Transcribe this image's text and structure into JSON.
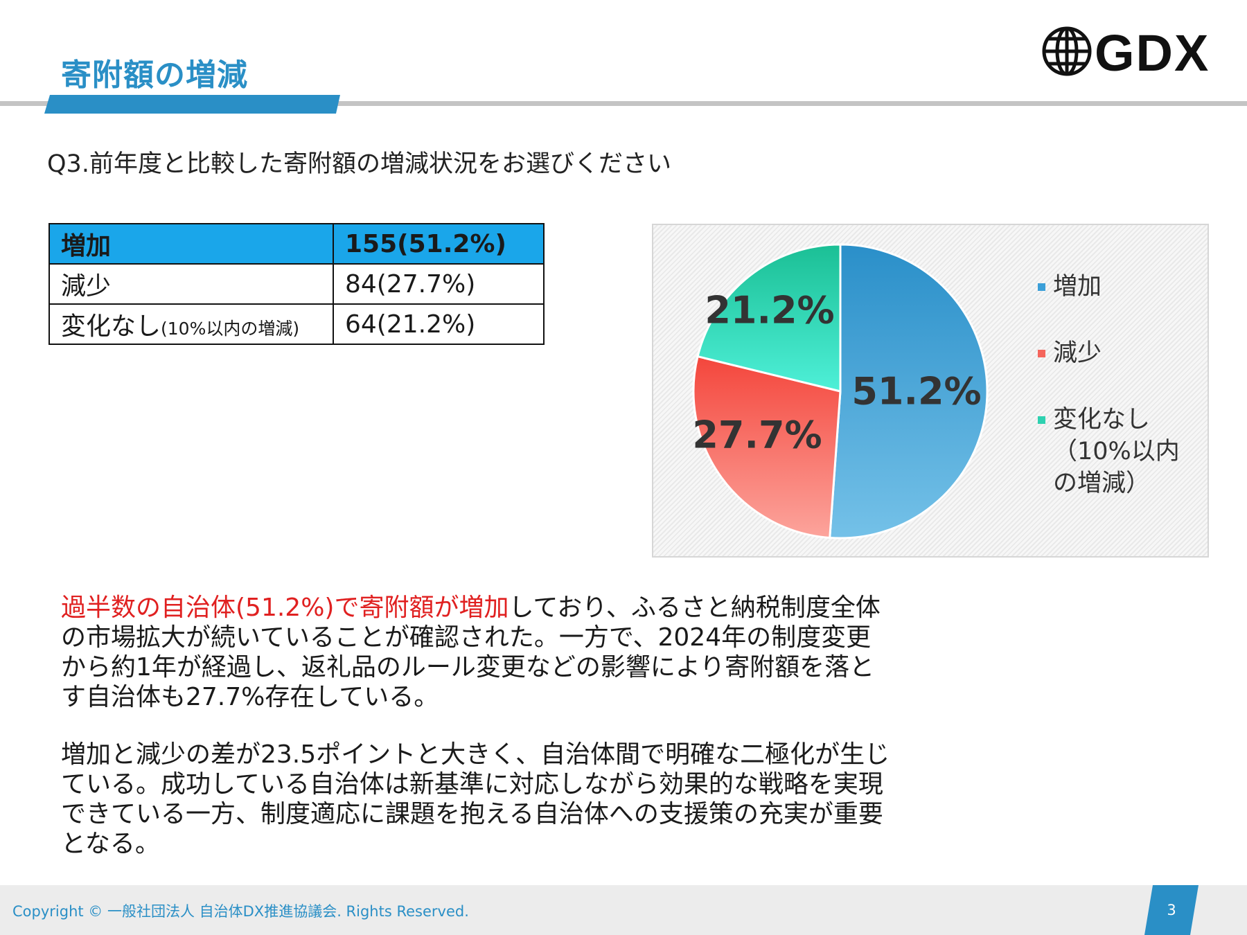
{
  "header": {
    "title": "寄附額の増減",
    "logo_text": "GDX"
  },
  "question": "Q3.前年度と比較した寄附額の増減状況をお選びください",
  "table": {
    "rows": [
      {
        "label": "増加",
        "label_note": "",
        "value": "155(51.2%)"
      },
      {
        "label": "減少",
        "label_note": "",
        "value": "84(27.7%)"
      },
      {
        "label": "変化なし",
        "label_note": "(10%以内の増減)",
        "value": "64(21.2%)"
      }
    ]
  },
  "chart_data": {
    "type": "pie",
    "categories": [
      "増加",
      "減少",
      "変化なし（10%以内の増減）"
    ],
    "values": [
      51.2,
      27.7,
      21.2
    ],
    "data_labels": [
      "51.2%",
      "27.7%",
      "21.2%"
    ],
    "legend_position": "right",
    "colors": [
      "#3b9fd8",
      "#f5655c",
      "#2ed1b0"
    ]
  },
  "legend": {
    "items": [
      {
        "label": "増加",
        "color": "#3b9fd8"
      },
      {
        "label": "減少",
        "color": "#f5655c"
      },
      {
        "label": "変化なし（10%以内の増減）",
        "color": "#2ed1b0"
      }
    ]
  },
  "body": {
    "p1_highlight": "過半数の自治体(51.2%)で寄附額が増加",
    "p1_rest": "しており、ふるさと納税制度全体の市場拡大が続いていることが確認された。一方で、2024年の制度変更から約1年が経過し、返礼品のルール変更などの影響により寄附額を落とす自治体も27.7%存在している。",
    "p2": "増加と減少の差が23.5ポイントと大きく、自治体間で明確な二極化が生じている。成功している自治体は新基準に対応しながら効果的な戦略を実現できている一方、制度適応に課題を抱える自治体への支援策の充実が重要となる。"
  },
  "footer": {
    "copyright": "Copyright © 一般社団法人 自治体DX推進協議会. Rights Reserved.",
    "page_number": "3"
  }
}
